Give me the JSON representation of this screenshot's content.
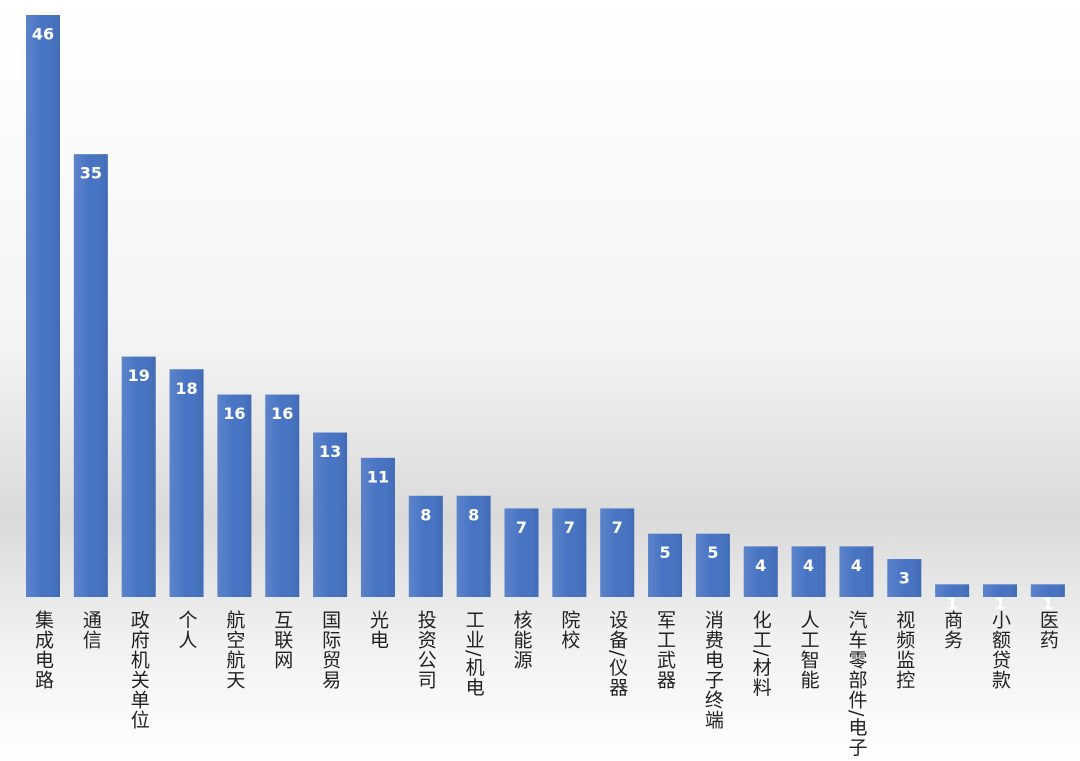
{
  "chart_data": {
    "type": "bar",
    "categories": [
      "集成电路",
      "通信",
      "政府机关单位",
      "个人",
      "航空航天",
      "互联网",
      "国际贸易",
      "光电",
      "投资公司",
      "工业/机电",
      "核能源",
      "院校",
      "设备/仪器",
      "军工武器",
      "消费电子终端",
      "化工/材料",
      "人工智能",
      "汽车零部件/电子",
      "视频监控",
      "商务",
      "小额贷款",
      "医药"
    ],
    "values": [
      46,
      35,
      19,
      18,
      16,
      16,
      13,
      11,
      8,
      8,
      7,
      7,
      7,
      5,
      5,
      4,
      4,
      4,
      3,
      1,
      1,
      1
    ],
    "color": "#4673c3"
  }
}
